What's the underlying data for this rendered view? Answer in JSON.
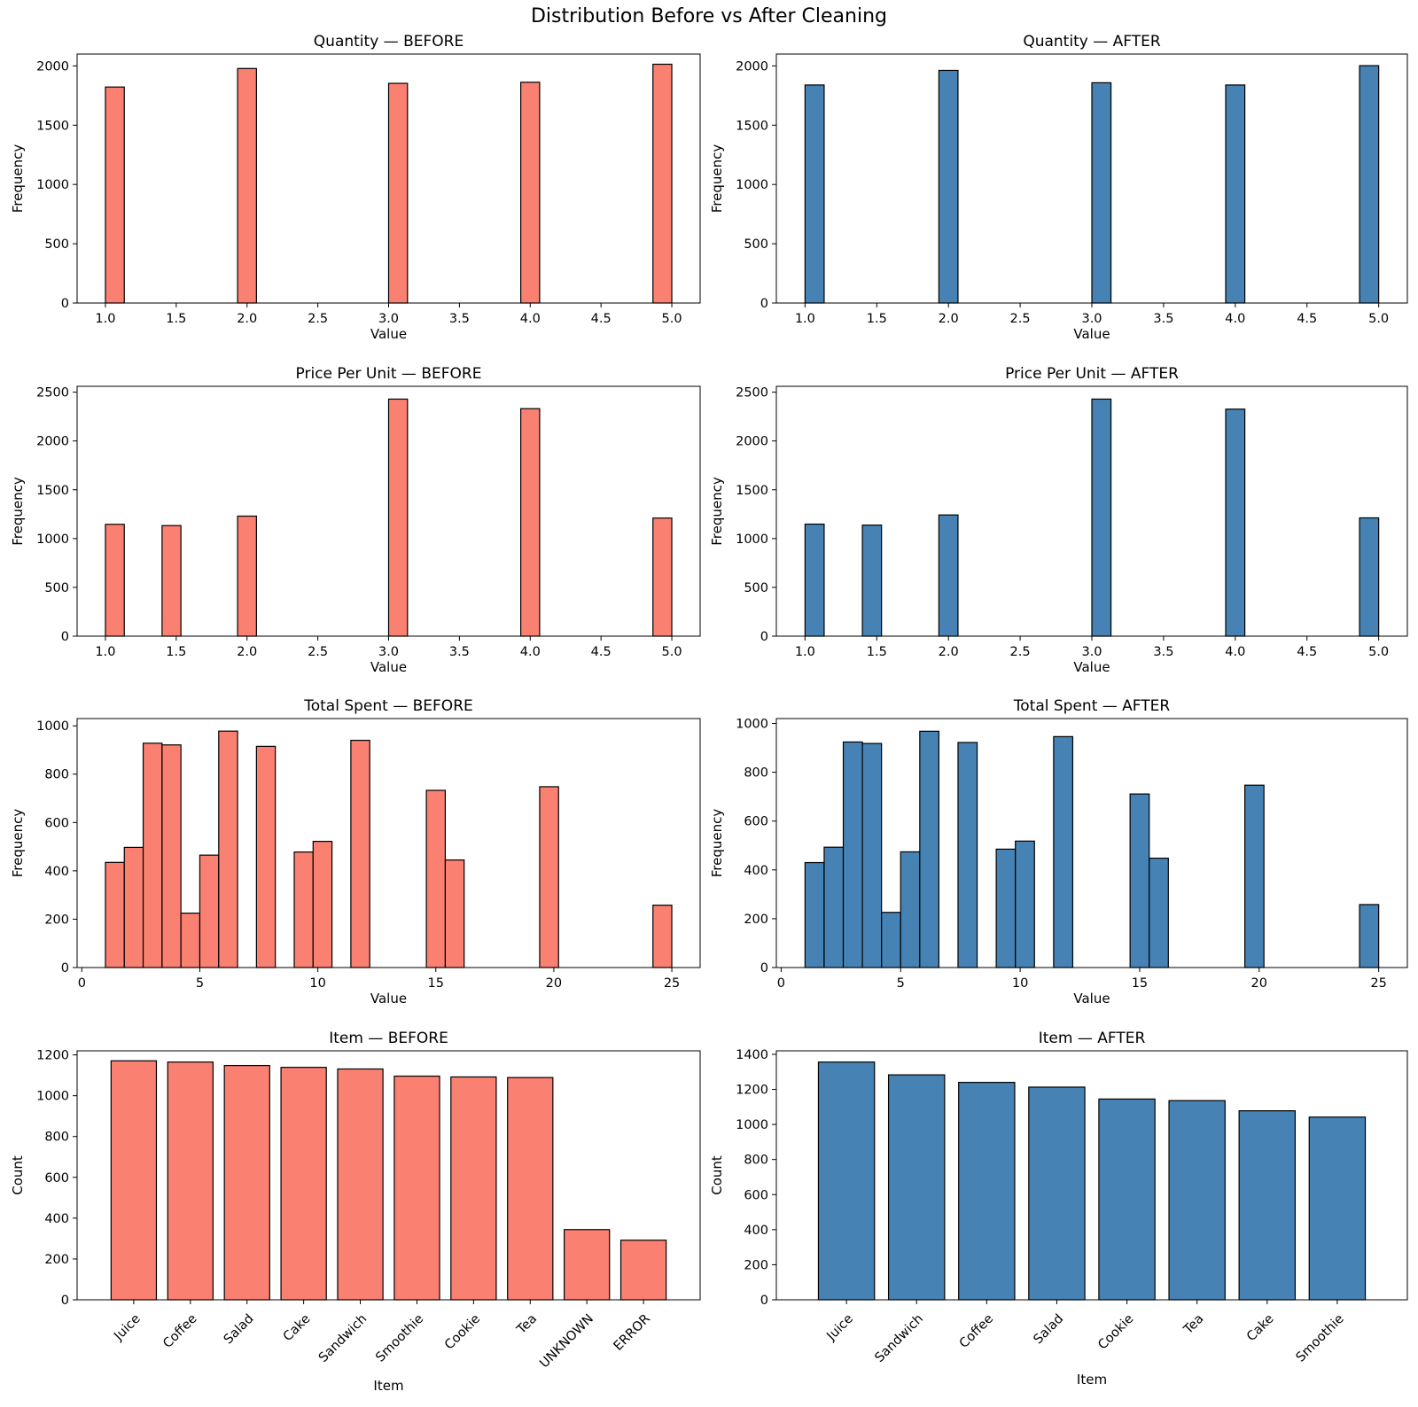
{
  "figure": {
    "title": "Distribution Before vs After Cleaning"
  },
  "colors": {
    "before": "#fa8072",
    "after": "#4682b4",
    "edge": "#000000"
  },
  "chart_data": [
    {
      "type": "bar",
      "title": "Quantity — BEFORE",
      "xlabel": "Value",
      "ylabel": "Frequency",
      "xlim": [
        0.8,
        5.2
      ],
      "ylim": [
        0,
        2100
      ],
      "xticks": [
        1.0,
        1.5,
        2.0,
        2.5,
        3.0,
        3.5,
        4.0,
        4.5,
        5.0
      ],
      "xtick_labels": [
        "1.0",
        "1.5",
        "2.0",
        "2.5",
        "3.0",
        "3.5",
        "4.0",
        "4.5",
        "5.0"
      ],
      "yticks": [
        0,
        500,
        1000,
        1500,
        2000
      ],
      "bin_width": 0.1333,
      "bins": [
        {
          "start": 1.0,
          "count": 1822
        },
        {
          "start": 1.9333,
          "count": 1978
        },
        {
          "start": 3.0,
          "count": 1853
        },
        {
          "start": 3.9333,
          "count": 1862
        },
        {
          "start": 4.8667,
          "count": 2014
        }
      ]
    },
    {
      "type": "bar",
      "title": "Quantity — AFTER",
      "xlabel": "Value",
      "ylabel": "Frequency",
      "xlim": [
        0.8,
        5.2
      ],
      "ylim": [
        0,
        2100
      ],
      "xticks": [
        1.0,
        1.5,
        2.0,
        2.5,
        3.0,
        3.5,
        4.0,
        4.5,
        5.0
      ],
      "xtick_labels": [
        "1.0",
        "1.5",
        "2.0",
        "2.5",
        "3.0",
        "3.5",
        "4.0",
        "4.5",
        "5.0"
      ],
      "yticks": [
        0,
        500,
        1000,
        1500,
        2000
      ],
      "bin_width": 0.1333,
      "bins": [
        {
          "start": 1.0,
          "count": 1839
        },
        {
          "start": 1.9333,
          "count": 1962
        },
        {
          "start": 3.0,
          "count": 1858
        },
        {
          "start": 3.9333,
          "count": 1839
        },
        {
          "start": 4.8667,
          "count": 2002
        }
      ]
    },
    {
      "type": "bar",
      "title": "Price Per Unit — BEFORE",
      "xlabel": "Value",
      "ylabel": "Frequency",
      "xlim": [
        0.8,
        5.2
      ],
      "ylim": [
        0,
        2560
      ],
      "xticks": [
        1.0,
        1.5,
        2.0,
        2.5,
        3.0,
        3.5,
        4.0,
        4.5,
        5.0
      ],
      "xtick_labels": [
        "1.0",
        "1.5",
        "2.0",
        "2.5",
        "3.0",
        "3.5",
        "4.0",
        "4.5",
        "5.0"
      ],
      "yticks": [
        0,
        500,
        1000,
        1500,
        2000,
        2500
      ],
      "bin_width": 0.1333,
      "bins": [
        {
          "start": 1.0,
          "count": 1146
        },
        {
          "start": 1.4,
          "count": 1133
        },
        {
          "start": 1.9333,
          "count": 1230
        },
        {
          "start": 3.0,
          "count": 2429
        },
        {
          "start": 3.9333,
          "count": 2331
        },
        {
          "start": 4.8667,
          "count": 1210
        }
      ]
    },
    {
      "type": "bar",
      "title": "Price Per Unit — AFTER",
      "xlabel": "Value",
      "ylabel": "Frequency",
      "xlim": [
        0.8,
        5.2
      ],
      "ylim": [
        0,
        2560
      ],
      "xticks": [
        1.0,
        1.5,
        2.0,
        2.5,
        3.0,
        3.5,
        4.0,
        4.5,
        5.0
      ],
      "xtick_labels": [
        "1.0",
        "1.5",
        "2.0",
        "2.5",
        "3.0",
        "3.5",
        "4.0",
        "4.5",
        "5.0"
      ],
      "yticks": [
        0,
        500,
        1000,
        1500,
        2000,
        2500
      ],
      "bin_width": 0.1333,
      "bins": [
        {
          "start": 1.0,
          "count": 1148
        },
        {
          "start": 1.4,
          "count": 1138
        },
        {
          "start": 1.9333,
          "count": 1242
        },
        {
          "start": 3.0,
          "count": 2429
        },
        {
          "start": 3.9333,
          "count": 2326
        },
        {
          "start": 4.8667,
          "count": 1212
        }
      ]
    },
    {
      "type": "bar",
      "title": "Total Spent — BEFORE",
      "xlabel": "Value",
      "ylabel": "Frequency",
      "xlim": [
        -0.2,
        26.2
      ],
      "ylim": [
        0,
        1030
      ],
      "xticks": [
        0,
        5,
        10,
        15,
        20,
        25
      ],
      "xtick_labels": [
        "0",
        "5",
        "10",
        "15",
        "20",
        "25"
      ],
      "yticks": [
        0,
        200,
        400,
        600,
        800,
        1000
      ],
      "bin_width": 0.8,
      "bins": [
        {
          "start": 1.0,
          "count": 435
        },
        {
          "start": 1.8,
          "count": 497
        },
        {
          "start": 2.6,
          "count": 928
        },
        {
          "start": 3.4,
          "count": 921
        },
        {
          "start": 4.2,
          "count": 225
        },
        {
          "start": 5.0,
          "count": 465
        },
        {
          "start": 5.8,
          "count": 978
        },
        {
          "start": 7.4,
          "count": 915
        },
        {
          "start": 9.0,
          "count": 478
        },
        {
          "start": 9.8,
          "count": 522
        },
        {
          "start": 11.4,
          "count": 940
        },
        {
          "start": 14.6,
          "count": 733
        },
        {
          "start": 15.4,
          "count": 445
        },
        {
          "start": 19.4,
          "count": 748
        },
        {
          "start": 24.2,
          "count": 258
        }
      ]
    },
    {
      "type": "bar",
      "title": "Total Spent — AFTER",
      "xlabel": "Value",
      "ylabel": "Frequency",
      "xlim": [
        -0.2,
        26.2
      ],
      "ylim": [
        0,
        1020
      ],
      "xticks": [
        0,
        5,
        10,
        15,
        20,
        25
      ],
      "xtick_labels": [
        "0",
        "5",
        "10",
        "15",
        "20",
        "25"
      ],
      "yticks": [
        0,
        200,
        400,
        600,
        800,
        1000
      ],
      "bin_width": 0.8,
      "bins": [
        {
          "start": 1.0,
          "count": 430
        },
        {
          "start": 1.8,
          "count": 493
        },
        {
          "start": 2.6,
          "count": 924
        },
        {
          "start": 3.4,
          "count": 918
        },
        {
          "start": 4.2,
          "count": 226
        },
        {
          "start": 5.0,
          "count": 474
        },
        {
          "start": 5.8,
          "count": 968
        },
        {
          "start": 7.4,
          "count": 922
        },
        {
          "start": 9.0,
          "count": 485
        },
        {
          "start": 9.8,
          "count": 518
        },
        {
          "start": 11.4,
          "count": 946
        },
        {
          "start": 14.6,
          "count": 711
        },
        {
          "start": 15.4,
          "count": 448
        },
        {
          "start": 19.4,
          "count": 747
        },
        {
          "start": 24.2,
          "count": 258
        }
      ]
    },
    {
      "type": "bar",
      "title": "Item — BEFORE",
      "xlabel": "Item",
      "ylabel": "Count",
      "ylim": [
        0,
        1220
      ],
      "yticks": [
        0,
        200,
        400,
        600,
        800,
        1000,
        1200
      ],
      "categories": [
        "Juice",
        "Coffee",
        "Salad",
        "Cake",
        "Sandwich",
        "Smoothie",
        "Cookie",
        "Tea",
        "UNKNOWN",
        "ERROR"
      ],
      "values": [
        1171,
        1165,
        1148,
        1139,
        1131,
        1096,
        1092,
        1089,
        344,
        292
      ]
    },
    {
      "type": "bar",
      "title": "Item — AFTER",
      "xlabel": "Item",
      "ylabel": "Count",
      "ylim": [
        0,
        1420
      ],
      "yticks": [
        0,
        200,
        400,
        600,
        800,
        1000,
        1200,
        1400
      ],
      "categories": [
        "Juice",
        "Sandwich",
        "Coffee",
        "Salad",
        "Cookie",
        "Tea",
        "Cake",
        "Smoothie"
      ],
      "values": [
        1356,
        1283,
        1240,
        1213,
        1145,
        1136,
        1078,
        1042
      ]
    }
  ]
}
